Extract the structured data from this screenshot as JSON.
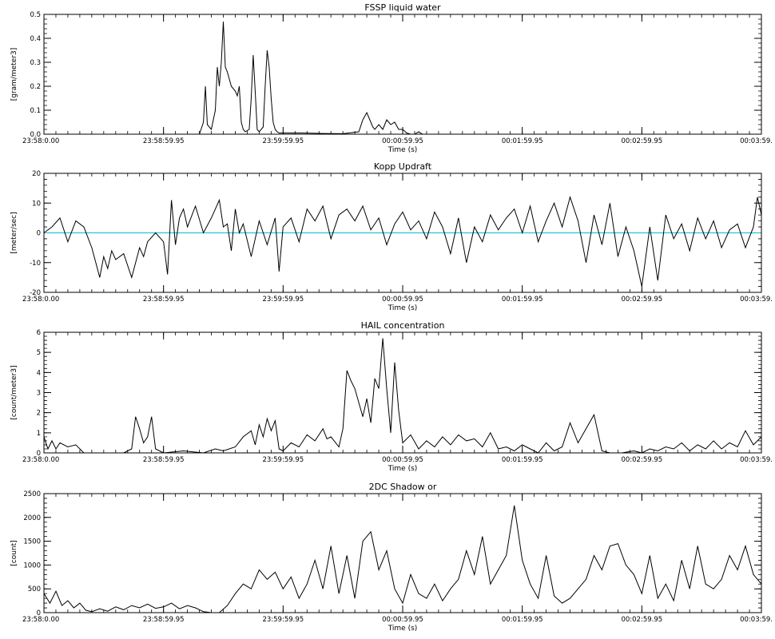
{
  "chart_data": [
    {
      "type": "line",
      "title": "FSSP liquid water",
      "xlabel": "Time (s)",
      "ylabel": "[gram/meter3]",
      "xticks": [
        "23:58:0.00",
        "23:58:59.95",
        "23:59:59.95",
        "00:00:59.95",
        "00:01:59.95",
        "00:02:59.95",
        "00:03:59."
      ],
      "xlim": [
        0,
        360
      ],
      "ylim": [
        0,
        0.5
      ],
      "yticks": [
        0.0,
        0.1,
        0.2,
        0.3,
        0.4,
        0.5
      ],
      "ytick_labels": [
        "0.0",
        "0.1",
        "0.2",
        "0.3",
        "0.4",
        "0.5"
      ],
      "series": [
        {
          "x": [
            0,
            78,
            80,
            81,
            82,
            84,
            86,
            87,
            88,
            89,
            90,
            91,
            92,
            93,
            94,
            96,
            97,
            98,
            99,
            100,
            101,
            103,
            104,
            105,
            106,
            107,
            108,
            110,
            111,
            112,
            113,
            114,
            115,
            116,
            117,
            118,
            120,
            125,
            130,
            140,
            150,
            158,
            160,
            162,
            164,
            165,
            166,
            168,
            170,
            172,
            174,
            176,
            178,
            180,
            182,
            184,
            186,
            188,
            190,
            240
          ],
          "values": [
            0,
            0,
            0.05,
            0.2,
            0.04,
            0.02,
            0.1,
            0.28,
            0.2,
            0.3,
            0.47,
            0.28,
            0.26,
            0.23,
            0.2,
            0.18,
            0.16,
            0.2,
            0.05,
            0.02,
            0.01,
            0.02,
            0.15,
            0.33,
            0.18,
            0.02,
            0.01,
            0.03,
            0.2,
            0.35,
            0.28,
            0.15,
            0.05,
            0.02,
            0.01,
            0.005,
            0.005,
            0.005,
            0.005,
            0.003,
            0.002,
            0.01,
            0.06,
            0.09,
            0.05,
            0.03,
            0.02,
            0.04,
            0.02,
            0.06,
            0.04,
            0.05,
            0.02,
            0.02,
            0.005,
            0.0,
            0.0,
            0.01,
            0.0,
            0
          ]
        }
      ],
      "reference_line": null
    },
    {
      "type": "line",
      "title": "Kopp Updraft",
      "xlabel": "Time (s)",
      "ylabel": "[meter/sec]",
      "xticks": [
        "23:58:0.00",
        "23:58:59.95",
        "23:59:59.95",
        "00:00:59.95",
        "00:01:59.95",
        "00:02:59.95",
        "00:03:59."
      ],
      "xlim": [
        0,
        360
      ],
      "ylim": [
        -20,
        20
      ],
      "yticks": [
        -20,
        -10,
        0,
        10,
        20
      ],
      "ytick_labels": [
        "-20",
        "-10",
        "0",
        "10",
        "20"
      ],
      "series": [
        {
          "x": [
            0,
            4,
            8,
            12,
            16,
            20,
            24,
            26,
            28,
            30,
            32,
            34,
            36,
            40,
            44,
            48,
            50,
            52,
            56,
            60,
            62,
            64,
            66,
            68,
            70,
            72,
            76,
            80,
            84,
            88,
            90,
            92,
            94,
            96,
            98,
            100,
            104,
            108,
            112,
            116,
            118,
            120,
            124,
            128,
            132,
            136,
            140,
            144,
            148,
            152,
            156,
            160,
            164,
            168,
            172,
            176,
            180,
            184,
            188,
            192,
            196,
            200,
            204,
            208,
            212,
            216,
            220,
            224,
            228,
            232,
            236,
            240,
            244,
            248,
            252,
            256,
            260,
            264,
            268,
            272,
            276,
            280,
            284,
            288,
            292,
            296,
            300,
            304,
            308,
            312,
            316,
            320,
            324,
            328,
            332,
            336,
            340,
            344,
            348,
            352,
            356,
            358,
            360
          ],
          "values": [
            0,
            2,
            5,
            -3,
            4,
            2,
            -5,
            -10,
            -15,
            -8,
            -12,
            -6,
            -9,
            -7,
            -15,
            -5,
            -8,
            -3,
            0,
            -3,
            -14,
            11,
            -4,
            5,
            8,
            2,
            9,
            0,
            5,
            11,
            2,
            3,
            -6,
            8,
            0,
            3,
            -8,
            4,
            -4,
            5,
            -13,
            2,
            5,
            -3,
            8,
            4,
            9,
            -2,
            6,
            8,
            4,
            9,
            1,
            5,
            -4,
            3,
            7,
            1,
            4,
            -2,
            7,
            2,
            -7,
            5,
            -10,
            2,
            -3,
            6,
            1,
            5,
            8,
            0,
            9,
            -3,
            4,
            10,
            2,
            12,
            4,
            -10,
            6,
            -4,
            10,
            -8,
            2,
            -6,
            -18,
            2,
            -16,
            6,
            -2,
            3,
            -6,
            5,
            -2,
            4,
            -5,
            1,
            3,
            -5,
            2,
            12,
            6
          ]
        }
      ],
      "reference_line": {
        "y": 0,
        "color": "#22c8d6"
      }
    },
    {
      "type": "line",
      "title": "HAIL concentration",
      "xlabel": "Time (s)",
      "ylabel": "[count/meter3]",
      "xticks": [
        "23:58:0.00",
        "23:58:59.95",
        "23:59:59.95",
        "00:00:59.95",
        "00:01:59.95",
        "00:02:59.95",
        "00:03:59."
      ],
      "xlim": [
        0,
        360
      ],
      "ylim": [
        0,
        6
      ],
      "yticks": [
        0,
        1,
        2,
        3,
        4,
        5,
        6
      ],
      "ytick_labels": [
        "0",
        "1",
        "2",
        "3",
        "4",
        "5",
        "6"
      ],
      "series": [
        {
          "x": [
            0,
            2,
            4,
            6,
            8,
            12,
            16,
            20,
            30,
            40,
            44,
            46,
            48,
            50,
            52,
            54,
            56,
            60,
            70,
            80,
            86,
            90,
            96,
            100,
            104,
            106,
            108,
            110,
            112,
            114,
            116,
            118,
            120,
            124,
            128,
            132,
            136,
            140,
            142,
            144,
            148,
            150,
            152,
            154,
            156,
            158,
            160,
            162,
            164,
            166,
            168,
            170,
            172,
            174,
            176,
            178,
            180,
            184,
            188,
            192,
            196,
            200,
            204,
            208,
            212,
            216,
            220,
            224,
            228,
            232,
            236,
            240,
            244,
            248,
            252,
            256,
            260,
            264,
            268,
            272,
            276,
            280,
            284,
            290,
            296,
            300,
            304,
            308,
            312,
            316,
            320,
            324,
            328,
            332,
            336,
            340,
            344,
            348,
            352,
            356,
            360
          ],
          "values": [
            0.8,
            0.2,
            0.6,
            0.2,
            0.5,
            0.3,
            0.4,
            0.0,
            0.0,
            0.0,
            0.2,
            1.8,
            1.2,
            0.5,
            0.8,
            1.8,
            0.2,
            0.0,
            0.1,
            0.0,
            0.2,
            0.1,
            0.3,
            0.8,
            1.1,
            0.4,
            1.4,
            0.8,
            1.7,
            1.1,
            1.6,
            0.2,
            0.1,
            0.5,
            0.3,
            0.9,
            0.6,
            1.2,
            0.7,
            0.8,
            0.3,
            1.2,
            4.1,
            3.6,
            3.2,
            2.5,
            1.8,
            2.7,
            1.5,
            3.7,
            3.2,
            5.7,
            3.2,
            1.0,
            4.5,
            2.1,
            0.5,
            0.9,
            0.2,
            0.6,
            0.3,
            0.8,
            0.4,
            0.9,
            0.6,
            0.7,
            0.3,
            1.0,
            0.2,
            0.3,
            0.1,
            0.4,
            0.2,
            0.0,
            0.5,
            0.1,
            0.3,
            1.5,
            0.5,
            1.2,
            1.9,
            0.1,
            0.0,
            0.0,
            0.1,
            0.0,
            0.2,
            0.1,
            0.3,
            0.2,
            0.5,
            0.1,
            0.4,
            0.2,
            0.6,
            0.2,
            0.5,
            0.3,
            1.1,
            0.4,
            0.8
          ]
        }
      ],
      "reference_line": null
    },
    {
      "type": "line",
      "title": "2DC Shadow or",
      "xlabel": "Time (s)",
      "ylabel": "[count]",
      "xticks": [
        "23:58:0.00",
        "23:58:59.95",
        "23:59:59.95",
        "00:00:59.95",
        "00:01:59.95",
        "00:02:59.95",
        "00:03:59."
      ],
      "xlim": [
        0,
        360
      ],
      "ylim": [
        0,
        2500
      ],
      "yticks": [
        0,
        500,
        1000,
        1500,
        2000,
        2500
      ],
      "ytick_labels": [
        "0",
        "500",
        "1000",
        "1500",
        "2000",
        "2500"
      ],
      "series": [
        {
          "x": [
            0,
            3,
            6,
            9,
            12,
            15,
            18,
            21,
            24,
            28,
            32,
            36,
            40,
            44,
            48,
            52,
            56,
            60,
            64,
            68,
            72,
            76,
            80,
            84,
            88,
            92,
            96,
            100,
            104,
            108,
            112,
            116,
            120,
            124,
            128,
            132,
            136,
            140,
            144,
            148,
            152,
            156,
            160,
            164,
            168,
            172,
            176,
            180,
            184,
            188,
            192,
            196,
            200,
            204,
            208,
            212,
            216,
            220,
            224,
            228,
            232,
            236,
            240,
            244,
            248,
            252,
            256,
            260,
            264,
            268,
            272,
            276,
            280,
            284,
            288,
            292,
            296,
            300,
            304,
            308,
            312,
            316,
            320,
            324,
            328,
            332,
            336,
            340,
            344,
            348,
            352,
            356,
            360
          ],
          "values": [
            400,
            200,
            450,
            150,
            250,
            100,
            200,
            50,
            20,
            80,
            30,
            120,
            60,
            150,
            100,
            180,
            90,
            120,
            200,
            80,
            150,
            100,
            20,
            0,
            0,
            150,
            400,
            600,
            500,
            900,
            700,
            850,
            500,
            750,
            300,
            600,
            1100,
            500,
            1400,
            400,
            1200,
            300,
            1500,
            1700,
            900,
            1300,
            500,
            200,
            800,
            400,
            300,
            600,
            250,
            500,
            700,
            1300,
            800,
            1600,
            600,
            900,
            1200,
            2250,
            1100,
            600,
            300,
            1200,
            350,
            200,
            300,
            500,
            700,
            1200,
            900,
            1400,
            1450,
            1000,
            800,
            400,
            1200,
            300,
            600,
            250,
            1100,
            500,
            1400,
            600,
            500,
            700,
            1200,
            900,
            1400,
            800,
            600
          ]
        }
      ],
      "reference_line": null
    }
  ]
}
